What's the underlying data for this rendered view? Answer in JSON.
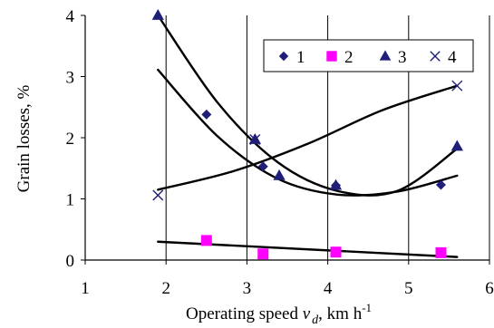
{
  "chart_data": {
    "type": "scatter",
    "xlabel": {
      "text": "Operating speed ",
      "var": "v",
      "sub": "d",
      "unit": ", km h",
      "sup": "-1"
    },
    "ylabel": "Grain losses, %",
    "xlim": [
      1,
      6
    ],
    "ylim": [
      0,
      4
    ],
    "xticks": [
      "1",
      "2",
      "3",
      "4",
      "5",
      "6"
    ],
    "yticks": [
      "0",
      "1",
      "2",
      "3",
      "4"
    ],
    "grid": "vertical",
    "legend_position": "top-right",
    "series": [
      {
        "name": "1",
        "marker": "diamond",
        "color": "#1f1f7a",
        "x": [
          2.5,
          3.2,
          4.1,
          5.4
        ],
        "y": [
          2.38,
          1.53,
          1.22,
          1.23
        ],
        "trend": {
          "x_from": 1.9,
          "x_to": 5.6,
          "y": [
            3.11,
            2.02,
            1.33,
            1.07,
            1.12,
            1.38
          ]
        }
      },
      {
        "name": "2",
        "marker": "square",
        "color": "#ff00ff",
        "x": [
          2.5,
          3.2,
          4.1,
          5.4
        ],
        "y": [
          0.32,
          0.1,
          0.13,
          0.12
        ],
        "trend": {
          "x_from": 1.9,
          "x_to": 5.6,
          "y": [
            0.3,
            0.05
          ]
        }
      },
      {
        "name": "3",
        "marker": "triangle",
        "color": "#1f1f7a",
        "x": [
          1.9,
          3.1,
          3.4,
          4.1,
          5.6
        ],
        "y": [
          4.0,
          1.97,
          1.38,
          1.22,
          1.86
        ],
        "trend": {
          "x_from": 1.9,
          "x_to": 5.6,
          "y": [
            4.0,
            2.57,
            1.6,
            1.13,
            1.13,
            1.82
          ]
        }
      },
      {
        "name": "4",
        "marker": "x",
        "color": "#1f1f7a",
        "x": [
          1.9,
          3.1,
          5.6
        ],
        "y": [
          1.06,
          1.97,
          2.85
        ],
        "trend": {
          "x_from": 1.9,
          "x_to": 5.6,
          "y": [
            1.15,
            1.45,
            1.9,
            2.45,
            2.85
          ]
        }
      }
    ]
  }
}
